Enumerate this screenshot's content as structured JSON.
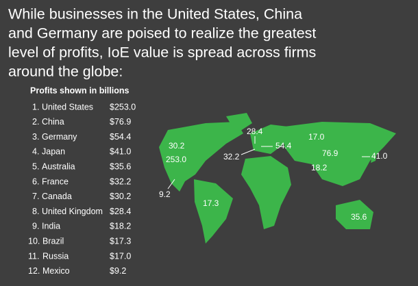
{
  "title": "While businesses in the United States, China and Germany are poised to realize the greatest level of profits, IoE value is spread across firms around the globe:",
  "title_lines": [
    "While businesses in the United States, China",
    "and Germany are poised to realize the greatest",
    "level of profits, IoE value is spread across firms",
    "around the globe:"
  ],
  "table": {
    "heading": "Profits shown in billions",
    "rows": [
      [
        "1.",
        "United States",
        "$253.0"
      ],
      [
        "2.",
        "China",
        "$76.9"
      ],
      [
        "3.",
        "Germany",
        "$54.4"
      ],
      [
        "4.",
        "Japan",
        "$41.0"
      ],
      [
        "5.",
        "Australia",
        "$35.6"
      ],
      [
        "6.",
        "France",
        "$32.2"
      ],
      [
        "7.",
        "Canada",
        "$30.2"
      ],
      [
        "8.",
        "United Kingdom",
        "$28.4"
      ],
      [
        "9.",
        "India",
        "$18.2"
      ],
      [
        "10.",
        "Brazil",
        "$17.3"
      ],
      [
        "11.",
        "Russia",
        "$17.0"
      ],
      [
        "12.",
        "Mexico",
        "$9.2"
      ]
    ]
  },
  "map_labels": [
    "30.2",
    "253.0",
    "9.2",
    "17.3",
    "28.4",
    "54.4",
    "32.2",
    "17.0",
    "76.9",
    "41.0",
    "18.2",
    "35.6"
  ]
}
